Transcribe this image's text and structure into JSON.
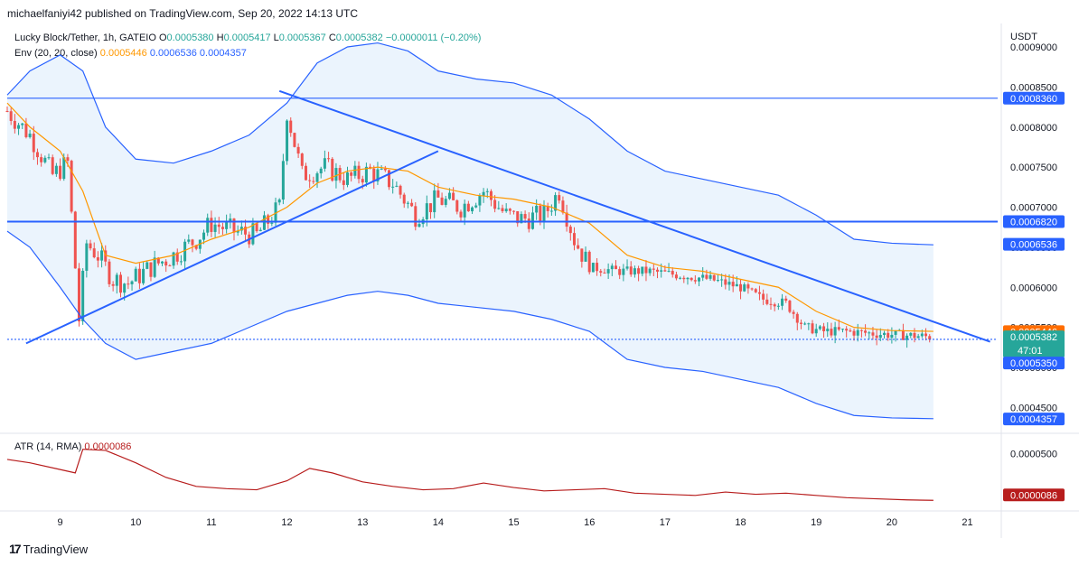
{
  "attribution": "michaelfaniyi42 published on TradingView.com, Sep 20, 2022 14:13 UTC",
  "legend": {
    "symbol": "Lucky Block/Tether, 1h, GATEIO",
    "o_label": "O",
    "o_value": "0.0005380",
    "h_label": "H",
    "h_value": "0.0005417",
    "l_label": "L",
    "l_value": "0.0005367",
    "c_label": "C",
    "c_value": "0.0005382",
    "change": "−0.0000011 (−0.20%)",
    "env_label": "Env (20, 20, close)",
    "env_basis": "0.0005446",
    "env_upper": "0.0006536",
    "env_lower": "0.0004357",
    "atr_label": "ATR (14, RMA)",
    "atr_value": "0.0000086"
  },
  "axis": {
    "currency": "USDT",
    "price_ticks": [
      "0.0009000",
      "0.0008500",
      "0.0008000",
      "0.0007500",
      "0.0007000",
      "0.0006500",
      "0.0006000",
      "0.0005500",
      "0.0005000",
      "0.0004500"
    ],
    "atr_tick": "0.0000500",
    "date_ticks": [
      "9",
      "10",
      "11",
      "12",
      "13",
      "14",
      "15",
      "16",
      "17",
      "18",
      "19",
      "20",
      "21"
    ]
  },
  "price_labels": {
    "resistance_high": "0.0008360",
    "resistance_mid": "0.0006820",
    "env_upper": "0.0006536",
    "env_basis": "0.0005446",
    "last_price": "0.0005382",
    "countdown": "47:01",
    "support": "0.0005350",
    "env_lower": "0.0004357",
    "atr": "0.0000086"
  },
  "footer": {
    "brand": "TradingView"
  },
  "colors": {
    "up": "#26a69a",
    "down": "#ef5350",
    "basis": "#ff9800",
    "band": "#2962ff",
    "band_fill": "#e3effc",
    "trend": "#2962ff",
    "atr": "#b71c1c",
    "label_blue": "#2962ff",
    "label_orange": "#ff6d00",
    "label_teal": "#26a69a",
    "label_red": "#b71c1c"
  },
  "chart_data": {
    "type": "candlestick",
    "symbol": "Lucky Block/Tether",
    "interval": "1h",
    "y_range": [
      0.00042,
      0.0009
    ],
    "x_range": [
      8.3,
      21.4
    ],
    "horizontal_levels": [
      0.000836,
      0.000682,
      0.000535
    ],
    "trendlines": [
      {
        "from": [
          8.55,
          0.00053
        ],
        "to": [
          9.05,
          0.00076
        ]
      },
      {
        "from": [
          11.9,
          0.000845
        ],
        "to": [
          21.3,
          0.000532
        ]
      }
    ],
    "trendlines_rising": [
      {
        "from": [
          8.55,
          0.00053
        ],
        "to": [
          14.0,
          0.00077
        ]
      }
    ],
    "close_series": {
      "x": [
        8.3,
        8.6,
        8.9,
        9.1,
        9.25,
        9.35,
        9.5,
        9.7,
        9.9,
        10.2,
        10.5,
        10.8,
        11.0,
        11.3,
        11.6,
        11.9,
        12.0,
        12.2,
        12.5,
        12.8,
        13.1,
        13.4,
        13.7,
        14.0,
        14.3,
        14.6,
        14.9,
        15.1,
        15.4,
        15.6,
        15.8,
        16.0,
        16.4,
        16.8,
        17.2,
        17.6,
        18.0,
        18.3,
        18.6,
        18.85,
        19.1,
        19.4,
        19.8,
        20.2,
        20.55
      ],
      "y": [
        0.00082,
        0.00079,
        0.00074,
        0.000755,
        0.00056,
        0.000655,
        0.00064,
        0.00061,
        0.000605,
        0.000625,
        0.00064,
        0.00066,
        0.00068,
        0.00067,
        0.000665,
        0.0007,
        0.00082,
        0.00074,
        0.00075,
        0.000735,
        0.000745,
        0.00073,
        0.00069,
        0.00071,
        0.0007,
        0.00072,
        0.00069,
        0.000685,
        0.00069,
        0.00072,
        0.00066,
        0.000625,
        0.00062,
        0.00062,
        0.000615,
        0.00061,
        0.0006,
        0.000585,
        0.00058,
        0.00055,
        0.000545,
        0.000545,
        0.000542,
        0.00054,
        0.000538
      ]
    },
    "envelope": {
      "x": [
        8.3,
        8.6,
        9.0,
        9.3,
        9.6,
        10.0,
        10.5,
        11.0,
        11.5,
        12.0,
        12.4,
        12.8,
        13.2,
        13.6,
        14.0,
        14.5,
        15.0,
        15.5,
        16.0,
        16.5,
        17.0,
        17.5,
        18.0,
        18.5,
        19.0,
        19.5,
        20.0,
        20.55
      ],
      "upper": [
        0.00084,
        0.00087,
        0.00089,
        0.00087,
        0.0008,
        0.00076,
        0.000755,
        0.00077,
        0.00079,
        0.00083,
        0.00088,
        0.0009,
        0.000905,
        0.000895,
        0.00087,
        0.00086,
        0.000855,
        0.00084,
        0.00081,
        0.00077,
        0.000745,
        0.000735,
        0.000725,
        0.000715,
        0.00069,
        0.00066,
        0.000655,
        0.000653
      ],
      "basis": [
        0.00083,
        0.0008,
        0.00077,
        0.00072,
        0.00064,
        0.00063,
        0.00064,
        0.00066,
        0.000675,
        0.0007,
        0.00073,
        0.000745,
        0.00075,
        0.000745,
        0.000725,
        0.000715,
        0.00071,
        0.0007,
        0.00068,
        0.00064,
        0.000625,
        0.00062,
        0.00061,
        0.0006,
        0.00057,
        0.00055,
        0.000546,
        0.000545
      ],
      "lower": [
        0.00067,
        0.00065,
        0.0006,
        0.00056,
        0.00053,
        0.00051,
        0.00052,
        0.00053,
        0.00055,
        0.00057,
        0.00058,
        0.00059,
        0.000595,
        0.00059,
        0.00058,
        0.000575,
        0.00057,
        0.00056,
        0.000545,
        0.00051,
        0.0005,
        0.000495,
        0.000485,
        0.000475,
        0.000455,
        0.00044,
        0.000437,
        0.000436
      ]
    },
    "atr_series": {
      "x": [
        8.3,
        8.6,
        9.0,
        9.2,
        9.3,
        9.6,
        10.0,
        10.4,
        10.8,
        11.2,
        11.6,
        12.0,
        12.3,
        12.6,
        13.0,
        13.4,
        13.8,
        14.2,
        14.6,
        15.0,
        15.4,
        15.8,
        16.2,
        16.6,
        17.0,
        17.4,
        17.8,
        18.2,
        18.6,
        19.0,
        19.4,
        19.8,
        20.2,
        20.55
      ],
      "y": [
        4.5e-05,
        4.2e-05,
        3.6e-05,
        3.3e-05,
        5.4e-05,
        5.3e-05,
        4.2e-05,
        2.9e-05,
        2.1e-05,
        1.9e-05,
        1.8e-05,
        2.6e-05,
        3.7e-05,
        3.3e-05,
        2.5e-05,
        2.1e-05,
        1.8e-05,
        1.9e-05,
        2.4e-05,
        2e-05,
        1.7e-05,
        1.8e-05,
        1.9e-05,
        1.5e-05,
        1.4e-05,
        1.3e-05,
        1.6e-05,
        1.4e-05,
        1.5e-05,
        1.3e-05,
        1.1e-05,
        1e-05,
        9e-06,
        8.6e-06
      ]
    },
    "atr_range": [
      0,
      6.5e-05
    ]
  }
}
